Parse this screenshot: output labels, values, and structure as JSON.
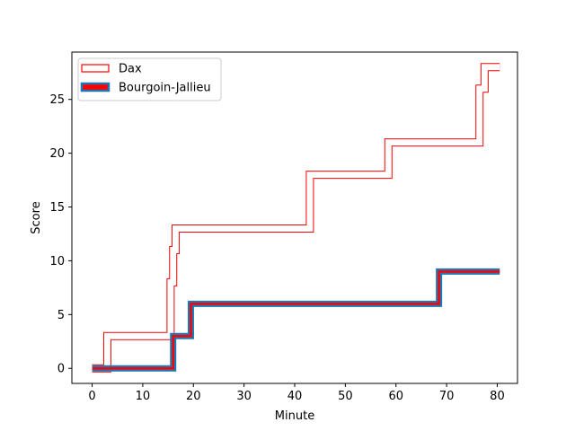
{
  "chart_data": {
    "type": "line",
    "title": "",
    "xlabel": "Minute",
    "ylabel": "Score",
    "xlim": [
      -4,
      84
    ],
    "ylim": [
      -1.4,
      29.4
    ],
    "xticks": [
      0,
      10,
      20,
      30,
      40,
      50,
      60,
      70,
      80
    ],
    "yticks": [
      0,
      5,
      10,
      15,
      20,
      25
    ],
    "grid": false,
    "legend_position": "upper-left",
    "series": [
      {
        "name": "Dax",
        "style": "step",
        "color": "#ff0000",
        "points": [
          [
            0,
            0
          ],
          [
            3,
            0
          ],
          [
            3,
            3
          ],
          [
            15.5,
            3
          ],
          [
            15.5,
            8
          ],
          [
            16,
            8
          ],
          [
            16,
            11
          ],
          [
            16.5,
            11
          ],
          [
            16.5,
            13
          ],
          [
            43,
            13
          ],
          [
            43,
            18
          ],
          [
            58.5,
            18
          ],
          [
            58.5,
            21
          ],
          [
            76.5,
            21
          ],
          [
            76.5,
            26
          ],
          [
            77.5,
            26
          ],
          [
            77.5,
            28
          ],
          [
            80.5,
            28
          ]
        ]
      },
      {
        "name": "Bourgoin-Jallieu",
        "style": "step",
        "color": "#1f77b4",
        "points": [
          [
            0,
            0
          ],
          [
            16,
            0
          ],
          [
            16,
            3
          ],
          [
            19.5,
            3
          ],
          [
            19.5,
            6
          ],
          [
            68.5,
            6
          ],
          [
            68.5,
            9
          ],
          [
            80.5,
            9
          ]
        ]
      }
    ]
  }
}
